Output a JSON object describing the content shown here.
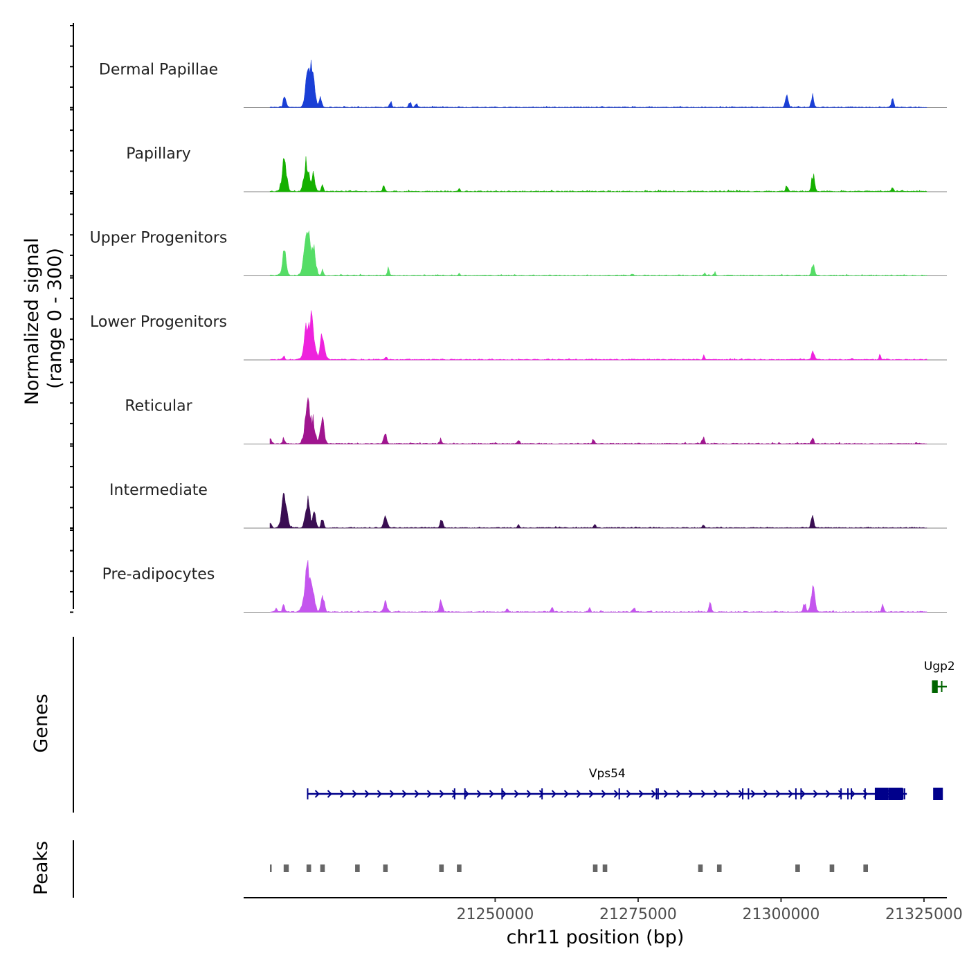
{
  "chart_data": {
    "type": "area",
    "title": "",
    "xlabel": "chr11 position (bp)",
    "ylabel": "Normalized signal\n(range 0 - 300)",
    "ylabel_lines": [
      "Normalized signal",
      "(range 0 - 300)"
    ],
    "xlim": [
      21206000,
      21329000
    ],
    "ylim": [
      0,
      300
    ],
    "x_ticks": [
      21250000,
      21275000,
      21300000,
      21325000
    ],
    "x_tick_labels": [
      "21250000",
      "21275000",
      "21300000",
      "21325000"
    ],
    "coverage_tracks": [
      {
        "name": "Dermal Papillae",
        "color": "#1a3fd6",
        "peaks": [
          [
            21213200,
            80
          ],
          [
            21217400,
            260
          ],
          [
            21218200,
            140
          ],
          [
            21219400,
            60
          ],
          [
            21231700,
            40
          ],
          [
            21235100,
            40
          ],
          [
            21236200,
            30
          ],
          [
            21301000,
            80
          ],
          [
            21305500,
            75
          ],
          [
            21319500,
            55
          ]
        ]
      },
      {
        "name": "Papillary",
        "color": "#15b000",
        "peaks": [
          [
            21213100,
            190
          ],
          [
            21217000,
            200
          ],
          [
            21218200,
            120
          ],
          [
            21219800,
            40
          ],
          [
            21230500,
            40
          ],
          [
            21243700,
            20
          ],
          [
            21301000,
            40
          ],
          [
            21305600,
            100
          ],
          [
            21319500,
            35
          ]
        ]
      },
      {
        "name": "Upper Progenitors",
        "color": "#55dd66",
        "peaks": [
          [
            21213100,
            150
          ],
          [
            21217200,
            290
          ],
          [
            21218300,
            150
          ],
          [
            21219800,
            40
          ],
          [
            21231300,
            45
          ],
          [
            21243700,
            15
          ],
          [
            21274000,
            15
          ],
          [
            21286600,
            15
          ],
          [
            21288400,
            20
          ],
          [
            21305600,
            75
          ]
        ]
      },
      {
        "name": "Lower Progenitors",
        "color": "#ee22dd",
        "peaks": [
          [
            21213000,
            25
          ],
          [
            21217300,
            290
          ],
          [
            21218200,
            150
          ],
          [
            21219800,
            170
          ],
          [
            21230900,
            20
          ],
          [
            21286500,
            25
          ],
          [
            21305600,
            60
          ],
          [
            21317300,
            30
          ]
        ]
      },
      {
        "name": "Reticular",
        "color": "#a0158f",
        "peaks": [
          [
            21210700,
            40
          ],
          [
            21213000,
            35
          ],
          [
            21217200,
            250
          ],
          [
            21218200,
            130
          ],
          [
            21219700,
            165
          ],
          [
            21230700,
            75
          ],
          [
            21240500,
            30
          ],
          [
            21254100,
            25
          ],
          [
            21267200,
            25
          ],
          [
            21286400,
            40
          ],
          [
            21305500,
            45
          ]
        ]
      },
      {
        "name": "Intermediate",
        "color": "#3a0e52",
        "peaks": [
          [
            21210700,
            30
          ],
          [
            21213100,
            210
          ],
          [
            21217200,
            180
          ],
          [
            21218400,
            100
          ],
          [
            21219800,
            60
          ],
          [
            21230800,
            100
          ],
          [
            21240600,
            60
          ],
          [
            21254100,
            25
          ],
          [
            21267400,
            25
          ],
          [
            21286400,
            25
          ],
          [
            21305500,
            70
          ]
        ]
      },
      {
        "name": "Pre-adipocytes",
        "color": "#c455ee",
        "peaks": [
          [
            21211700,
            30
          ],
          [
            21213000,
            45
          ],
          [
            21217200,
            290
          ],
          [
            21218200,
            110
          ],
          [
            21219800,
            110
          ],
          [
            21230800,
            80
          ],
          [
            21240500,
            80
          ],
          [
            21252100,
            25
          ],
          [
            21260000,
            30
          ],
          [
            21266500,
            25
          ],
          [
            21274300,
            30
          ],
          [
            21287600,
            60
          ],
          [
            21304100,
            60
          ],
          [
            21305600,
            150
          ],
          [
            21317800,
            50
          ]
        ]
      }
    ],
    "genes_track": {
      "label": "Genes",
      "genes": [
        {
          "name": "Vps54",
          "start": 21217200,
          "end": 21322000,
          "strand": "+",
          "color": "#00008b",
          "row": "lower",
          "exons": [
            21217200,
            21242900,
            21244700,
            21251200,
            21258200,
            21271700,
            21278200,
            21278500,
            21293300,
            21294300,
            21302600,
            21303500,
            21310500,
            21311700,
            21312300,
            21314700,
            21318100,
            21320700,
            21321300,
            21321600
          ],
          "blocks": [
            [
              21316400,
              21318800
            ],
            [
              21318800,
              21321300
            ],
            [
              21326600,
              21328300
            ]
          ]
        },
        {
          "name": "Ugp2",
          "start": 21326400,
          "end": 21331700,
          "strand": "-",
          "color": "#006400",
          "row": "upper",
          "exons": [
            21328100
          ],
          "blocks": [
            [
              21326400,
              21327400
            ]
          ]
        }
      ]
    },
    "peaks_track": {
      "label": "Peaks",
      "color": "#666666",
      "regions": [
        [
          21210600,
          21210800
        ],
        [
          21213000,
          21213900
        ],
        [
          21217000,
          21217800
        ],
        [
          21219400,
          21220200
        ],
        [
          21225500,
          21226300
        ],
        [
          21230400,
          21231200
        ],
        [
          21240200,
          21241000
        ],
        [
          21243300,
          21244100
        ],
        [
          21267100,
          21267900
        ],
        [
          21268800,
          21269600
        ],
        [
          21285500,
          21286300
        ],
        [
          21288800,
          21289600
        ],
        [
          21302500,
          21303300
        ],
        [
          21308500,
          21309300
        ],
        [
          21314400,
          21315200
        ]
      ]
    }
  }
}
